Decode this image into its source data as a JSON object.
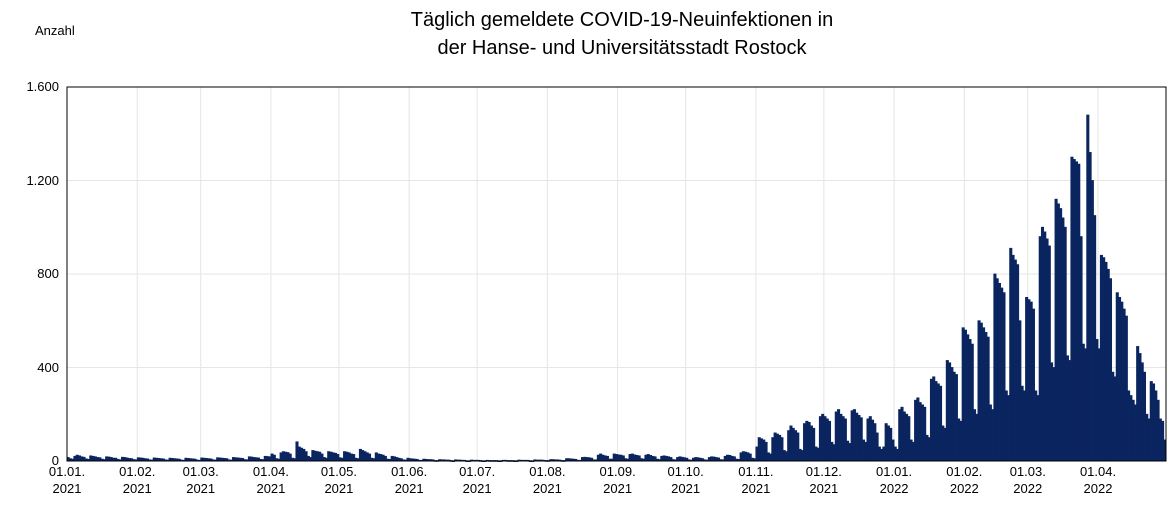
{
  "chart_data": {
    "type": "bar",
    "title": "Täglich gemeldete COVID-19-Neuinfektionen in\nder Hanse- und Universitätsstadt Rostock",
    "y_label": "Anzahl",
    "color": "#0b2560",
    "grid": true,
    "ylim": [
      0,
      1600
    ],
    "yticks": [
      0,
      400,
      800,
      {
        "value": 1200,
        "label": "1.200"
      },
      {
        "value": 1600,
        "label": "1.600"
      }
    ],
    "categories": [
      "01.01.\n2021",
      null,
      null,
      null,
      null,
      null,
      null,
      null,
      null,
      null,
      null,
      null,
      null,
      null,
      null,
      null,
      null,
      null,
      null,
      null,
      null,
      null,
      null,
      null,
      null,
      null,
      null,
      null,
      null,
      null,
      null,
      "01.02.\n2021",
      null,
      null,
      null,
      null,
      null,
      null,
      null,
      null,
      null,
      null,
      null,
      null,
      null,
      null,
      null,
      null,
      null,
      null,
      null,
      null,
      null,
      null,
      null,
      null,
      null,
      null,
      null,
      "01.03.\n2021",
      null,
      null,
      null,
      null,
      null,
      null,
      null,
      null,
      null,
      null,
      null,
      null,
      null,
      null,
      null,
      null,
      null,
      null,
      null,
      null,
      null,
      null,
      null,
      null,
      null,
      null,
      null,
      null,
      null,
      null,
      "01.04.\n2021",
      null,
      null,
      null,
      null,
      null,
      null,
      null,
      null,
      null,
      null,
      null,
      null,
      null,
      null,
      null,
      null,
      null,
      null,
      null,
      null,
      null,
      null,
      null,
      null,
      null,
      null,
      null,
      null,
      null,
      "01.05.\n2021",
      null,
      null,
      null,
      null,
      null,
      null,
      null,
      null,
      null,
      null,
      null,
      null,
      null,
      null,
      null,
      null,
      null,
      null,
      null,
      null,
      null,
      null,
      null,
      null,
      null,
      null,
      null,
      null,
      null,
      null,
      "01.06.\n2021",
      null,
      null,
      null,
      null,
      null,
      null,
      null,
      null,
      null,
      null,
      null,
      null,
      null,
      null,
      null,
      null,
      null,
      null,
      null,
      null,
      null,
      null,
      null,
      null,
      null,
      null,
      null,
      null,
      null,
      "01.07.\n2021",
      null,
      null,
      null,
      null,
      null,
      null,
      null,
      null,
      null,
      null,
      null,
      null,
      null,
      null,
      null,
      null,
      null,
      null,
      null,
      null,
      null,
      null,
      null,
      null,
      null,
      null,
      null,
      null,
      null,
      null,
      "01.08.\n2021",
      null,
      null,
      null,
      null,
      null,
      null,
      null,
      null,
      null,
      null,
      null,
      null,
      null,
      null,
      null,
      null,
      null,
      null,
      null,
      null,
      null,
      null,
      null,
      null,
      null,
      null,
      null,
      null,
      null,
      null,
      "01.09.\n2021",
      null,
      null,
      null,
      null,
      null,
      null,
      null,
      null,
      null,
      null,
      null,
      null,
      null,
      null,
      null,
      null,
      null,
      null,
      null,
      null,
      null,
      null,
      null,
      null,
      null,
      null,
      null,
      null,
      null,
      "01.10.\n2021",
      null,
      null,
      null,
      null,
      null,
      null,
      null,
      null,
      null,
      null,
      null,
      null,
      null,
      null,
      null,
      null,
      null,
      null,
      null,
      null,
      null,
      null,
      null,
      null,
      null,
      null,
      null,
      null,
      null,
      null,
      "01.11.\n2021",
      null,
      null,
      null,
      null,
      null,
      null,
      null,
      null,
      null,
      null,
      null,
      null,
      null,
      null,
      null,
      null,
      null,
      null,
      null,
      null,
      null,
      null,
      null,
      null,
      null,
      null,
      null,
      null,
      null,
      "01.12.\n2021",
      null,
      null,
      null,
      null,
      null,
      null,
      null,
      null,
      null,
      null,
      null,
      null,
      null,
      null,
      null,
      null,
      null,
      null,
      null,
      null,
      null,
      null,
      null,
      null,
      null,
      null,
      null,
      null,
      null,
      null,
      "01.01.\n2022",
      null,
      null,
      null,
      null,
      null,
      null,
      null,
      null,
      null,
      null,
      null,
      null,
      null,
      null,
      null,
      null,
      null,
      null,
      null,
      null,
      null,
      null,
      null,
      null,
      null,
      null,
      null,
      null,
      null,
      null,
      "01.02.\n2022",
      null,
      null,
      null,
      null,
      null,
      null,
      null,
      null,
      null,
      null,
      null,
      null,
      null,
      null,
      null,
      null,
      null,
      null,
      null,
      null,
      null,
      null,
      null,
      null,
      null,
      null,
      null,
      "01.03.\n2022",
      null,
      null,
      null,
      null,
      null,
      null,
      null,
      null,
      null,
      null,
      null,
      null,
      null,
      null,
      null,
      null,
      null,
      null,
      null,
      null,
      null,
      null,
      null,
      null,
      null,
      null,
      null,
      null,
      null,
      null,
      "01.04.\n2022",
      null,
      null,
      null,
      null,
      null,
      null,
      null,
      null,
      null,
      null,
      null,
      null,
      null,
      null,
      null,
      null,
      null,
      null,
      null,
      null,
      null,
      null,
      null,
      null,
      null,
      null,
      null,
      null,
      null
    ],
    "values": [
      15,
      10,
      8,
      20,
      25,
      22,
      18,
      16,
      9,
      7,
      22,
      20,
      18,
      15,
      14,
      8,
      6,
      18,
      17,
      15,
      12,
      12,
      7,
      5,
      16,
      15,
      13,
      11,
      10,
      6,
      5,
      14,
      13,
      12,
      10,
      9,
      5,
      4,
      13,
      12,
      11,
      10,
      9,
      5,
      4,
      12,
      11,
      10,
      9,
      8,
      4,
      3,
      12,
      11,
      10,
      9,
      8,
      4,
      3,
      13,
      12,
      11,
      10,
      9,
      5,
      4,
      14,
      13,
      12,
      11,
      10,
      5,
      4,
      15,
      14,
      13,
      12,
      11,
      6,
      5,
      18,
      17,
      15,
      14,
      13,
      7,
      6,
      20,
      19,
      18,
      30,
      25,
      10,
      8,
      35,
      40,
      38,
      36,
      30,
      12,
      10,
      82,
      60,
      55,
      50,
      40,
      20,
      15,
      45,
      42,
      40,
      38,
      30,
      15,
      12,
      40,
      38,
      35,
      33,
      28,
      14,
      12,
      40,
      38,
      35,
      30,
      28,
      12,
      10,
      50,
      45,
      40,
      35,
      30,
      12,
      10,
      35,
      30,
      28,
      25,
      20,
      8,
      7,
      20,
      18,
      15,
      12,
      10,
      5,
      4,
      12,
      10,
      9,
      8,
      7,
      3,
      3,
      8,
      7,
      6,
      6,
      5,
      2,
      2,
      6,
      5,
      5,
      4,
      4,
      2,
      1,
      5,
      4,
      4,
      3,
      3,
      1,
      1,
      4,
      3,
      3,
      3,
      2,
      1,
      1,
      3,
      2,
      2,
      2,
      2,
      1,
      1,
      3,
      3,
      2,
      2,
      2,
      1,
      1,
      4,
      3,
      3,
      3,
      3,
      1,
      1,
      5,
      4,
      4,
      4,
      3,
      2,
      2,
      6,
      6,
      5,
      5,
      4,
      2,
      2,
      10,
      10,
      9,
      8,
      7,
      3,
      3,
      15,
      16,
      15,
      14,
      12,
      5,
      5,
      25,
      30,
      25,
      22,
      20,
      8,
      8,
      30,
      28,
      26,
      25,
      22,
      10,
      8,
      28,
      30,
      26,
      24,
      22,
      10,
      8,
      25,
      28,
      24,
      20,
      18,
      8,
      6,
      20,
      22,
      20,
      18,
      15,
      6,
      5,
      15,
      18,
      16,
      14,
      12,
      5,
      4,
      12,
      15,
      14,
      12,
      10,
      5,
      4,
      15,
      18,
      17,
      15,
      13,
      6,
      5,
      20,
      25,
      24,
      20,
      18,
      8,
      7,
      35,
      40,
      38,
      35,
      30,
      12,
      10,
      60,
      100,
      95,
      90,
      80,
      35,
      30,
      100,
      120,
      115,
      110,
      100,
      45,
      40,
      130,
      150,
      140,
      130,
      120,
      50,
      45,
      160,
      170,
      165,
      150,
      140,
      60,
      55,
      190,
      200,
      190,
      180,
      170,
      80,
      70,
      210,
      220,
      200,
      190,
      180,
      85,
      75,
      215,
      220,
      205,
      195,
      185,
      90,
      80,
      180,
      190,
      175,
      160,
      120,
      60,
      50,
      60,
      160,
      150,
      140,
      90,
      60,
      50,
      220,
      230,
      210,
      200,
      190,
      90,
      80,
      260,
      270,
      250,
      240,
      230,
      110,
      100,
      350,
      360,
      340,
      330,
      320,
      150,
      140,
      430,
      420,
      400,
      380,
      370,
      180,
      170,
      570,
      560,
      540,
      520,
      500,
      220,
      200,
      600,
      590,
      570,
      550,
      530,
      240,
      220,
      800,
      780,
      760,
      740,
      720,
      300,
      280,
      910,
      880,
      860,
      840,
      600,
      320,
      300,
      700,
      690,
      680,
      650,
      300,
      280,
      960,
      1000,
      980,
      950,
      920,
      420,
      400,
      1120,
      1100,
      1080,
      1040,
      1000,
      450,
      430,
      1300,
      1290,
      1280,
      1270,
      960,
      500,
      480,
      1480,
      1320,
      1200,
      1050,
      520,
      480,
      880,
      870,
      850,
      820,
      780,
      380,
      360,
      720,
      700,
      680,
      650,
      620,
      300,
      280,
      260,
      240,
      490,
      460,
      420,
      380,
      200,
      180,
      340,
      330,
      300,
      260,
      180,
      170,
      90
    ]
  }
}
